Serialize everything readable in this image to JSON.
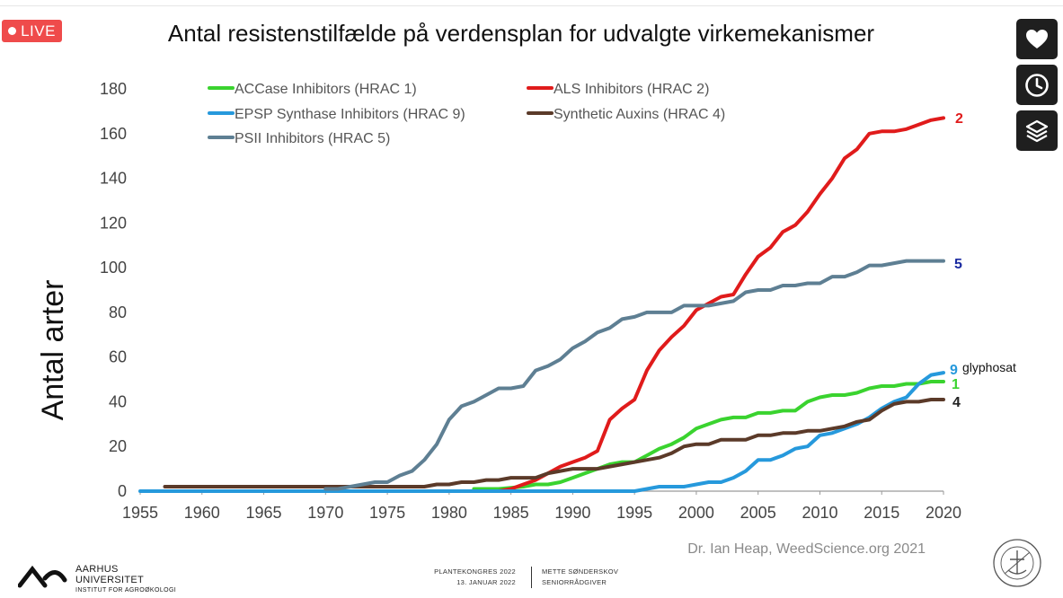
{
  "live_badge": {
    "label": "LIVE",
    "color": "#ef4b4b"
  },
  "side_buttons": [
    {
      "icon": "heart-icon"
    },
    {
      "icon": "clock-icon"
    },
    {
      "icon": "layers-icon"
    }
  ],
  "chart_data": {
    "type": "line",
    "title": "Antal resistenstilfælde på verdensplan for udvalgte virkemekanismer",
    "ylabel": "Antal arter",
    "xlabel": "",
    "xlim": [
      1955,
      2020
    ],
    "ylim": [
      0,
      180
    ],
    "x_ticks": [
      "1955",
      "1960",
      "1965",
      "1970",
      "1975",
      "1980",
      "1985",
      "1990",
      "1995",
      "2000",
      "2005",
      "2010",
      "2015",
      "2020"
    ],
    "y_ticks": [
      "0",
      "20",
      "40",
      "60",
      "80",
      "100",
      "120",
      "140",
      "160",
      "180"
    ],
    "grid": false,
    "legend_placement": "top-left",
    "source": "Dr. Ian Heap, WeedScience.org 2021",
    "series": [
      {
        "name": "ACCase Inhibitors (HRAC 1)",
        "end_label": "1",
        "color": "#3ad32f",
        "points": [
          [
            1982,
            1
          ],
          [
            1984,
            1
          ],
          [
            1986,
            2
          ],
          [
            1987,
            3
          ],
          [
            1988,
            3
          ],
          [
            1989,
            4
          ],
          [
            1990,
            6
          ],
          [
            1991,
            8
          ],
          [
            1992,
            10
          ],
          [
            1993,
            12
          ],
          [
            1994,
            13
          ],
          [
            1995,
            13
          ],
          [
            1996,
            16
          ],
          [
            1997,
            19
          ],
          [
            1998,
            21
          ],
          [
            1999,
            24
          ],
          [
            2000,
            28
          ],
          [
            2001,
            30
          ],
          [
            2002,
            32
          ],
          [
            2003,
            33
          ],
          [
            2004,
            33
          ],
          [
            2005,
            35
          ],
          [
            2006,
            35
          ],
          [
            2007,
            36
          ],
          [
            2008,
            36
          ],
          [
            2009,
            40
          ],
          [
            2010,
            42
          ],
          [
            2011,
            43
          ],
          [
            2012,
            43
          ],
          [
            2013,
            44
          ],
          [
            2014,
            46
          ],
          [
            2015,
            47
          ],
          [
            2016,
            47
          ],
          [
            2017,
            48
          ],
          [
            2018,
            48
          ],
          [
            2019,
            49
          ],
          [
            2020,
            49
          ]
        ]
      },
      {
        "name": "ALS Inhibitors (HRAC 2)",
        "end_label": "2",
        "color": "#e01b1b",
        "points": [
          [
            1982,
            0
          ],
          [
            1984,
            0
          ],
          [
            1985,
            1
          ],
          [
            1986,
            3
          ],
          [
            1987,
            5
          ],
          [
            1988,
            8
          ],
          [
            1989,
            11
          ],
          [
            1990,
            13
          ],
          [
            1991,
            15
          ],
          [
            1992,
            18
          ],
          [
            1993,
            32
          ],
          [
            1994,
            37
          ],
          [
            1995,
            41
          ],
          [
            1996,
            54
          ],
          [
            1997,
            63
          ],
          [
            1998,
            69
          ],
          [
            1999,
            74
          ],
          [
            2000,
            81
          ],
          [
            2001,
            84
          ],
          [
            2002,
            87
          ],
          [
            2003,
            88
          ],
          [
            2004,
            97
          ],
          [
            2005,
            105
          ],
          [
            2006,
            109
          ],
          [
            2007,
            116
          ],
          [
            2008,
            119
          ],
          [
            2009,
            125
          ],
          [
            2010,
            133
          ],
          [
            2011,
            140
          ],
          [
            2012,
            149
          ],
          [
            2013,
            153
          ],
          [
            2014,
            160
          ],
          [
            2015,
            161
          ],
          [
            2016,
            161
          ],
          [
            2017,
            162
          ],
          [
            2018,
            164
          ],
          [
            2019,
            166
          ],
          [
            2020,
            167
          ]
        ]
      },
      {
        "name": "EPSP Synthase Inhibitors (HRAC 9)",
        "end_label": "9",
        "end_note": "glyphosat",
        "color": "#2699dc",
        "points": [
          [
            1955,
            0
          ],
          [
            1995,
            0
          ],
          [
            1996,
            1
          ],
          [
            1997,
            2
          ],
          [
            1998,
            2
          ],
          [
            1999,
            2
          ],
          [
            2000,
            3
          ],
          [
            2001,
            4
          ],
          [
            2002,
            4
          ],
          [
            2003,
            6
          ],
          [
            2004,
            9
          ],
          [
            2005,
            14
          ],
          [
            2006,
            14
          ],
          [
            2007,
            16
          ],
          [
            2008,
            19
          ],
          [
            2009,
            20
          ],
          [
            2010,
            25
          ],
          [
            2011,
            26
          ],
          [
            2012,
            28
          ],
          [
            2013,
            30
          ],
          [
            2014,
            33
          ],
          [
            2015,
            37
          ],
          [
            2016,
            40
          ],
          [
            2017,
            42
          ],
          [
            2018,
            48
          ],
          [
            2019,
            52
          ],
          [
            2020,
            53
          ]
        ]
      },
      {
        "name": "Synthetic Auxins (HRAC 4)",
        "end_label": "4",
        "color": "#5b3a29",
        "points": [
          [
            1957,
            2
          ],
          [
            1965,
            2
          ],
          [
            1970,
            2
          ],
          [
            1975,
            2
          ],
          [
            1978,
            2
          ],
          [
            1979,
            3
          ],
          [
            1980,
            3
          ],
          [
            1981,
            4
          ],
          [
            1982,
            4
          ],
          [
            1983,
            5
          ],
          [
            1984,
            5
          ],
          [
            1985,
            6
          ],
          [
            1986,
            6
          ],
          [
            1987,
            6
          ],
          [
            1988,
            8
          ],
          [
            1989,
            9
          ],
          [
            1990,
            10
          ],
          [
            1991,
            10
          ],
          [
            1992,
            10
          ],
          [
            1993,
            11
          ],
          [
            1994,
            12
          ],
          [
            1995,
            13
          ],
          [
            1996,
            14
          ],
          [
            1997,
            15
          ],
          [
            1998,
            17
          ],
          [
            1999,
            20
          ],
          [
            2000,
            21
          ],
          [
            2001,
            21
          ],
          [
            2002,
            23
          ],
          [
            2003,
            23
          ],
          [
            2004,
            23
          ],
          [
            2005,
            25
          ],
          [
            2006,
            25
          ],
          [
            2007,
            26
          ],
          [
            2008,
            26
          ],
          [
            2009,
            27
          ],
          [
            2010,
            27
          ],
          [
            2011,
            28
          ],
          [
            2012,
            29
          ],
          [
            2013,
            31
          ],
          [
            2014,
            32
          ],
          [
            2015,
            36
          ],
          [
            2016,
            39
          ],
          [
            2017,
            40
          ],
          [
            2018,
            40
          ],
          [
            2019,
            41
          ],
          [
            2020,
            41
          ]
        ]
      },
      {
        "name": "PSII Inhibitors (HRAC 5)",
        "end_label": "5",
        "color": "#5e7f93",
        "points": [
          [
            1970,
            1
          ],
          [
            1971,
            1
          ],
          [
            1972,
            2
          ],
          [
            1973,
            3
          ],
          [
            1974,
            4
          ],
          [
            1975,
            4
          ],
          [
            1976,
            7
          ],
          [
            1977,
            9
          ],
          [
            1978,
            14
          ],
          [
            1979,
            21
          ],
          [
            1980,
            32
          ],
          [
            1981,
            38
          ],
          [
            1982,
            40
          ],
          [
            1983,
            43
          ],
          [
            1984,
            46
          ],
          [
            1985,
            46
          ],
          [
            1986,
            47
          ],
          [
            1987,
            54
          ],
          [
            1988,
            56
          ],
          [
            1989,
            59
          ],
          [
            1990,
            64
          ],
          [
            1991,
            67
          ],
          [
            1992,
            71
          ],
          [
            1993,
            73
          ],
          [
            1994,
            77
          ],
          [
            1995,
            78
          ],
          [
            1996,
            80
          ],
          [
            1997,
            80
          ],
          [
            1998,
            80
          ],
          [
            1999,
            83
          ],
          [
            2000,
            83
          ],
          [
            2001,
            83
          ],
          [
            2002,
            84
          ],
          [
            2003,
            85
          ],
          [
            2004,
            89
          ],
          [
            2005,
            90
          ],
          [
            2006,
            90
          ],
          [
            2007,
            92
          ],
          [
            2008,
            92
          ],
          [
            2009,
            93
          ],
          [
            2010,
            93
          ],
          [
            2011,
            96
          ],
          [
            2012,
            96
          ],
          [
            2013,
            98
          ],
          [
            2014,
            101
          ],
          [
            2015,
            101
          ],
          [
            2016,
            102
          ],
          [
            2017,
            103
          ],
          [
            2018,
            103
          ],
          [
            2019,
            103
          ],
          [
            2020,
            103
          ]
        ]
      }
    ]
  },
  "footer": {
    "org_line1": "AARHUS",
    "org_line2": "UNIVERSITET",
    "org_line3": "INSTITUT FOR AGROØKOLOGI",
    "event_line1": "PLANTEKONGRES 2022",
    "event_line2": "13. JANUAR 2022",
    "speaker_line1": "METTE SØNDERSKOV",
    "speaker_line2": "SENIORRÅDGIVER"
  }
}
